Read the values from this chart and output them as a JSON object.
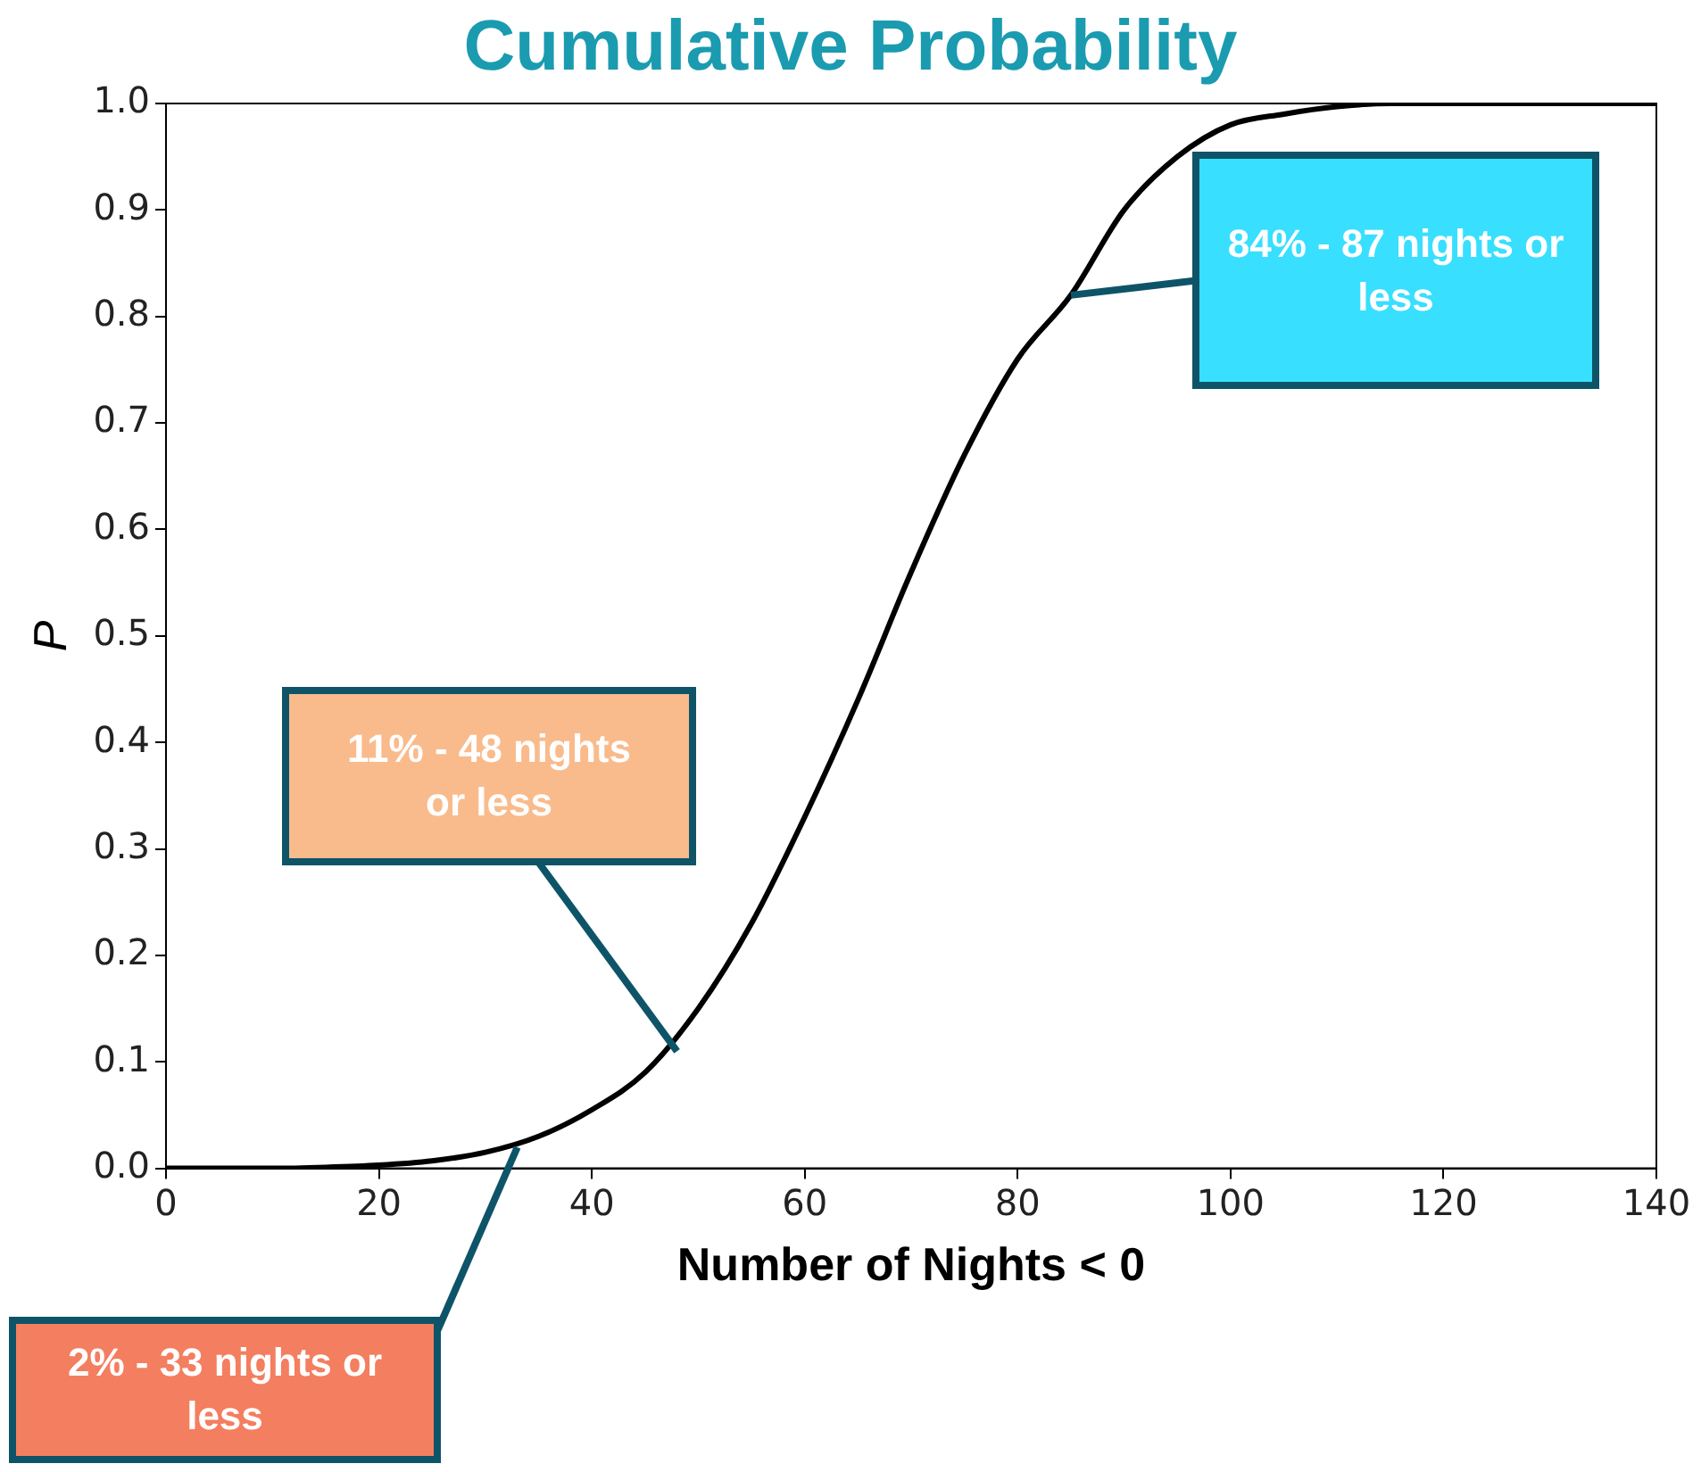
{
  "chart_data": {
    "type": "line",
    "title": "Cumulative Probability",
    "xlabel": "Number of Nights < 0",
    "ylabel": "P",
    "x": [
      0,
      10,
      15,
      20,
      25,
      30,
      35,
      40,
      45,
      50,
      55,
      60,
      65,
      70,
      75,
      80,
      85,
      90,
      95,
      100,
      105,
      110,
      115,
      120,
      130,
      140
    ],
    "series": [
      {
        "color": "#000000",
        "values": [
          0,
          0,
          0.001,
          0.003,
          0.007,
          0.015,
          0.03,
          0.055,
          0.09,
          0.15,
          0.23,
          0.33,
          0.44,
          0.56,
          0.67,
          0.76,
          0.82,
          0.9,
          0.95,
          0.98,
          0.99,
          0.997,
          1,
          1,
          1,
          1
        ]
      }
    ],
    "xlim": [
      0,
      140
    ],
    "xticks": [
      0,
      20,
      40,
      60,
      80,
      100,
      120,
      140
    ],
    "ylim": [
      0,
      1
    ],
    "yticks": [
      {
        "value": 0,
        "label": "0.0"
      },
      0.1,
      0.2,
      0.3,
      0.4,
      0.5,
      0.6,
      0.7,
      0.8,
      0.9,
      {
        "value": 1,
        "label": "1.0"
      }
    ],
    "grid": false,
    "legend": false,
    "marker": "none",
    "line_style": "solid",
    "annotations": [
      {
        "text": "2% - 33 nights or less",
        "x": 33,
        "y": 0.02
      },
      {
        "text": "11% - 48 nights or less",
        "x": 48,
        "y": 0.11
      },
      {
        "text": "84% - 87 nights or less",
        "x": 85,
        "y": 0.82
      }
    ]
  }
}
